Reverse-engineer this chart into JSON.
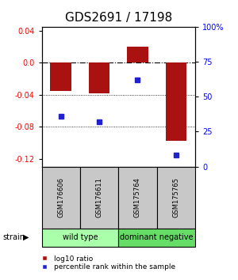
{
  "title": "GDS2691 / 17198",
  "samples": [
    "GSM176606",
    "GSM176611",
    "GSM175764",
    "GSM175765"
  ],
  "log10_ratio": [
    -0.035,
    -0.038,
    0.02,
    -0.098
  ],
  "percentile_rank": [
    0.36,
    0.32,
    0.62,
    0.08
  ],
  "bar_color": "#aa1111",
  "dot_color": "#2222cc",
  "ylim_left": [
    -0.13,
    0.045
  ],
  "ylim_right": [
    0.0,
    1.0
  ],
  "yticks_left": [
    0.04,
    0.0,
    -0.04,
    -0.08,
    -0.12
  ],
  "yticks_right": [
    1.0,
    0.75,
    0.5,
    0.25,
    0.0
  ],
  "ytick_labels_right": [
    "100%",
    "75",
    "50",
    "25",
    "0"
  ],
  "dotted_lines": [
    -0.04,
    -0.08
  ],
  "bar_width": 0.55,
  "groups": [
    {
      "label": "wild type",
      "samples": [
        0,
        1
      ],
      "color": "#aaffaa"
    },
    {
      "label": "dominant negative",
      "samples": [
        2,
        3
      ],
      "color": "#66dd66"
    }
  ],
  "strain_label": "strain",
  "legend_items": [
    {
      "label": "log10 ratio",
      "color": "#aa1111"
    },
    {
      "label": "percentile rank within the sample",
      "color": "#2222cc"
    }
  ],
  "bg_color": "#ffffff",
  "plot_bg": "#ffffff",
  "sample_box_color": "#c8c8c8",
  "title_fontsize": 11,
  "tick_fontsize": 7,
  "sample_fontsize": 6,
  "group_fontsize": 7,
  "legend_fontsize": 6.5
}
